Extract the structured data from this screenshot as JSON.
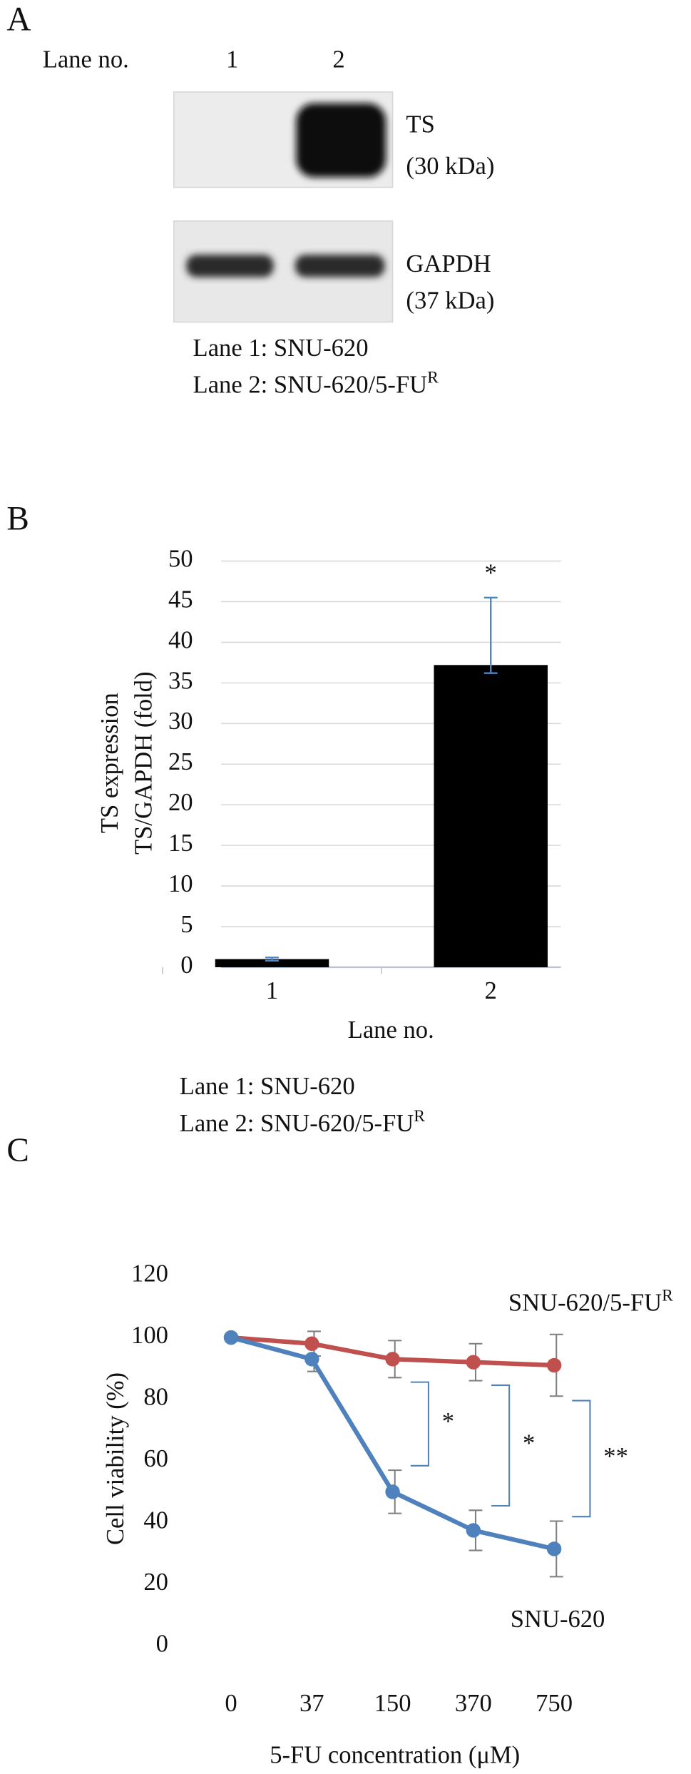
{
  "panel_a": {
    "label": "A",
    "lane_header": "Lane no.",
    "lanes": [
      "1",
      "2"
    ],
    "blots": [
      {
        "name": "TS",
        "size": "(30 kDa)"
      },
      {
        "name": "GAPDH",
        "size": "(37 kDa)"
      }
    ],
    "notes": [
      {
        "text": "Lane 1: SNU-620"
      },
      {
        "text": "Lane 2: SNU-620/5-FU",
        "sup": "R"
      }
    ]
  },
  "chart_data": [
    {
      "type": "bar",
      "panel_label": "B",
      "y_label": [
        "TS expression",
        "TS/GAPDH (fold)"
      ],
      "x_label": "Lane no.",
      "categories": [
        "1",
        "2"
      ],
      "values": [
        1,
        37.2
      ],
      "error_plus": [
        0.2,
        8.3
      ],
      "error_minus": [
        0.2,
        1.0
      ],
      "color": "#000000",
      "error_color": "#4a86c8",
      "annotations": [
        {
          "text": "*",
          "category": "2"
        }
      ],
      "ylim": [
        0,
        50
      ],
      "yticks": [
        0,
        5,
        10,
        15,
        20,
        25,
        30,
        35,
        40,
        45,
        50
      ],
      "grid": true,
      "notes": [
        {
          "text": "Lane 1: SNU-620"
        },
        {
          "text": "Lane 2: SNU-620/5-FU",
          "sup": "R"
        }
      ]
    },
    {
      "type": "line",
      "panel_label": "C",
      "y_label": "Cell viability (%)",
      "x_label": "5-FU concentration (μM)",
      "categories": [
        "0",
        "37",
        "150",
        "370",
        "750"
      ],
      "series": [
        {
          "name": "SNU-620/5-FU",
          "name_sup": "R",
          "color": "#c0504d",
          "values": [
            100,
            98,
            93,
            92,
            91
          ],
          "errors": [
            0,
            4,
            6,
            6,
            10
          ]
        },
        {
          "name": "SNU-620",
          "color": "#4f81bd",
          "values": [
            100,
            93,
            50,
            37.5,
            31.5
          ],
          "errors": [
            0,
            4,
            7,
            6.5,
            9
          ]
        }
      ],
      "error_color": "#7f7f7f",
      "bracket_color": "#4f81bd",
      "annotations": [
        {
          "text": "*",
          "category": "150"
        },
        {
          "text": "*",
          "category": "370"
        },
        {
          "text": "**",
          "category": "750"
        }
      ],
      "ylim": [
        0,
        120
      ],
      "yticks": [
        0,
        20,
        40,
        60,
        80,
        100,
        120
      ],
      "grid": false
    }
  ]
}
